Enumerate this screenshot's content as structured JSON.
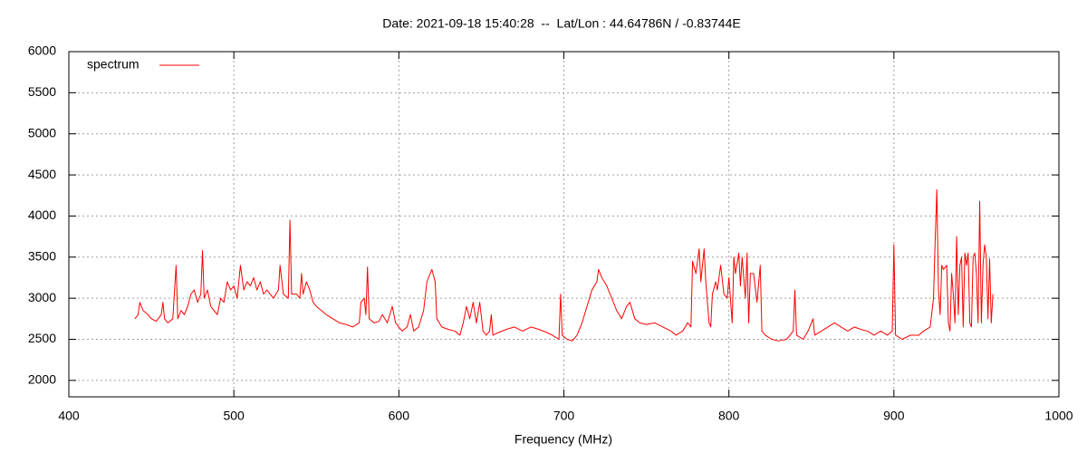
{
  "chart_data": {
    "type": "line",
    "title": "Date: 2021-09-18 15:40:28  --  Lat/Lon : 44.64786N / -0.83744E",
    "xlabel": "Frequency (MHz)",
    "x": [
      440,
      442,
      443,
      445,
      448,
      450,
      453,
      456,
      457,
      458,
      460,
      463,
      465,
      466,
      468,
      470,
      472,
      474,
      476,
      478,
      480,
      481,
      482,
      484,
      486,
      488,
      490,
      492,
      494,
      496,
      498,
      500,
      502,
      504,
      506,
      508,
      510,
      512,
      514,
      516,
      518,
      520,
      522,
      524,
      527,
      528,
      530,
      533,
      534,
      535,
      538,
      540,
      541,
      542,
      544,
      546,
      548,
      550,
      553,
      556,
      560,
      564,
      568,
      572,
      576,
      577,
      579,
      580,
      581,
      582,
      585,
      588,
      590,
      593,
      596,
      598,
      600,
      602,
      605,
      607,
      609,
      612,
      615,
      617,
      620,
      622,
      623,
      626,
      630,
      634,
      637,
      639,
      641,
      643,
      645,
      647,
      649,
      651,
      653,
      655,
      656,
      657,
      660,
      665,
      670,
      675,
      680,
      685,
      690,
      693,
      697,
      698,
      699,
      702,
      705,
      708,
      711,
      714,
      717,
      720,
      721,
      723,
      726,
      729,
      732,
      735,
      738,
      740,
      743,
      746,
      750,
      755,
      760,
      765,
      768,
      772,
      775,
      777,
      778,
      780,
      782,
      783,
      785,
      786,
      788,
      789,
      790,
      792,
      793,
      795,
      797,
      799,
      800,
      802,
      803,
      804,
      806,
      807,
      808,
      810,
      811,
      812,
      813,
      815,
      817,
      819,
      820,
      822,
      826,
      830,
      835,
      839,
      840,
      841,
      845,
      848,
      851,
      852,
      856,
      860,
      864,
      868,
      872,
      876,
      880,
      884,
      888,
      892,
      896,
      899,
      900,
      901,
      905,
      910,
      915,
      918,
      922,
      924,
      925,
      926,
      927,
      928,
      929,
      930,
      932,
      933,
      934,
      935,
      936,
      937,
      938,
      939,
      940,
      941,
      942,
      943,
      944,
      945,
      946,
      947,
      948,
      949,
      950,
      951,
      952,
      953,
      954,
      955,
      956,
      957,
      958,
      959,
      960
    ],
    "series": [
      {
        "name": "spectrum",
        "color": "#ff0000",
        "values": [
          2750,
          2800,
          2950,
          2850,
          2800,
          2750,
          2720,
          2800,
          2950,
          2750,
          2700,
          2750,
          3400,
          2750,
          2850,
          2800,
          2900,
          3050,
          3100,
          2950,
          3050,
          3580,
          3000,
          3100,
          2900,
          2850,
          2800,
          3000,
          2950,
          3200,
          3100,
          3150,
          3000,
          3400,
          3100,
          3200,
          3150,
          3250,
          3100,
          3200,
          3050,
          3100,
          3050,
          3000,
          3100,
          3400,
          3050,
          3000,
          3950,
          3050,
          3050,
          3000,
          3300,
          3050,
          3200,
          3100,
          2950,
          2900,
          2850,
          2800,
          2750,
          2700,
          2680,
          2650,
          2700,
          2950,
          3000,
          2800,
          3380,
          2750,
          2700,
          2720,
          2800,
          2700,
          2900,
          2700,
          2650,
          2600,
          2650,
          2800,
          2600,
          2650,
          2850,
          3200,
          3350,
          3200,
          2750,
          2650,
          2620,
          2600,
          2550,
          2700,
          2900,
          2750,
          2950,
          2700,
          2950,
          2600,
          2550,
          2600,
          2800,
          2550,
          2580,
          2620,
          2650,
          2600,
          2650,
          2620,
          2580,
          2550,
          2500,
          3050,
          2550,
          2500,
          2480,
          2550,
          2700,
          2900,
          3100,
          3200,
          3350,
          3250,
          3150,
          3000,
          2850,
          2750,
          2900,
          2950,
          2750,
          2700,
          2680,
          2700,
          2650,
          2600,
          2550,
          2600,
          2700,
          2650,
          3450,
          3300,
          3600,
          3200,
          3600,
          3200,
          2700,
          2650,
          3050,
          3200,
          3100,
          3400,
          3050,
          3000,
          3250,
          2700,
          3500,
          3300,
          3550,
          3150,
          3500,
          3000,
          3550,
          2700,
          3300,
          3300,
          2950,
          3400,
          2600,
          2550,
          2500,
          2480,
          2500,
          2600,
          3100,
          2550,
          2500,
          2600,
          2750,
          2550,
          2600,
          2650,
          2700,
          2650,
          2600,
          2650,
          2620,
          2600,
          2550,
          2600,
          2550,
          2600,
          3650,
          2550,
          2500,
          2550,
          2550,
          2600,
          2650,
          3000,
          3700,
          4320,
          3100,
          2800,
          3400,
          3350,
          3400,
          2700,
          2600,
          3300,
          3050,
          2700,
          3750,
          2800,
          3400,
          3500,
          2650,
          3550,
          3400,
          3550,
          2700,
          2650,
          3500,
          3550,
          3300,
          2700,
          4180,
          2700,
          3400,
          3650,
          3500,
          2750,
          3480,
          2700,
          3050
        ]
      }
    ],
    "xlim": [
      400,
      1000
    ],
    "xticks": [
      400,
      500,
      600,
      700,
      800,
      900,
      1000
    ],
    "ylim": [
      1800,
      6000
    ],
    "yticks": [
      2000,
      2500,
      3000,
      3500,
      4000,
      4500,
      5000,
      5500,
      6000
    ],
    "grid": true,
    "legend": "top-left"
  }
}
